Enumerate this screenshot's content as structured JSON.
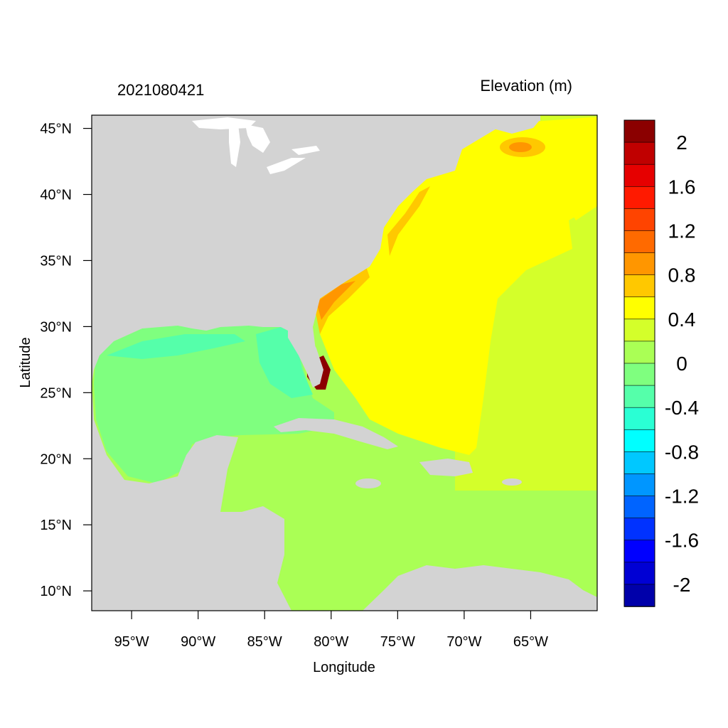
{
  "map": {
    "left_title": "2021080421",
    "right_title": "Elevation (m)",
    "x_axis_title": "Longitude",
    "y_axis_title": "Latitude",
    "lon_range": [
      -98,
      -60
    ],
    "lat_range": [
      8.5,
      46
    ],
    "lat_ticks": [
      {
        "value": 45,
        "label": "45°N"
      },
      {
        "value": 40,
        "label": "40°N"
      },
      {
        "value": 35,
        "label": "35°N"
      },
      {
        "value": 30,
        "label": "30°N"
      },
      {
        "value": 25,
        "label": "25°N"
      },
      {
        "value": 20,
        "label": "20°N"
      },
      {
        "value": 15,
        "label": "15°N"
      },
      {
        "value": 10,
        "label": "10°N"
      }
    ],
    "lon_ticks": [
      {
        "value": -95,
        "label": "95°W"
      },
      {
        "value": -90,
        "label": "90°W"
      },
      {
        "value": -85,
        "label": "85°W"
      },
      {
        "value": -80,
        "label": "80°W"
      },
      {
        "value": -75,
        "label": "75°W"
      },
      {
        "value": -70,
        "label": "70°W"
      },
      {
        "value": -65,
        "label": "65°W"
      }
    ],
    "land_color": "#d3d3d3",
    "ocean_colors": {
      "caribbean": "#aaff55",
      "gulf": "#7fff7f",
      "gulf_east": "#55ffaa",
      "atlantic": "#ffff00",
      "atlantic_east": "#d4ff2a",
      "coast_orange": "#ffc800",
      "coast_dark": "#ff9600",
      "surge": "#8b0000"
    }
  },
  "colorbar": {
    "levels": [
      {
        "color": "#8b0000"
      },
      {
        "color": "#c00000"
      },
      {
        "color": "#e60000"
      },
      {
        "color": "#ff1a00"
      },
      {
        "color": "#ff4400"
      },
      {
        "color": "#ff6a00"
      },
      {
        "color": "#ff9600"
      },
      {
        "color": "#ffc800"
      },
      {
        "color": "#ffff00"
      },
      {
        "color": "#d4ff2a"
      },
      {
        "color": "#aaff55"
      },
      {
        "color": "#7fff7f"
      },
      {
        "color": "#55ffaa"
      },
      {
        "color": "#2affd4"
      },
      {
        "color": "#00ffff"
      },
      {
        "color": "#00c8ff"
      },
      {
        "color": "#0096ff"
      },
      {
        "color": "#0064ff"
      },
      {
        "color": "#0032ff"
      },
      {
        "color": "#0000ff"
      },
      {
        "color": "#0000d4"
      },
      {
        "color": "#0000aa"
      }
    ],
    "labels": [
      "2",
      "1.6",
      "1.2",
      "0.8",
      "0.4",
      "0",
      "-0.4",
      "-0.8",
      "-1.2",
      "-1.6",
      "-2"
    ]
  }
}
